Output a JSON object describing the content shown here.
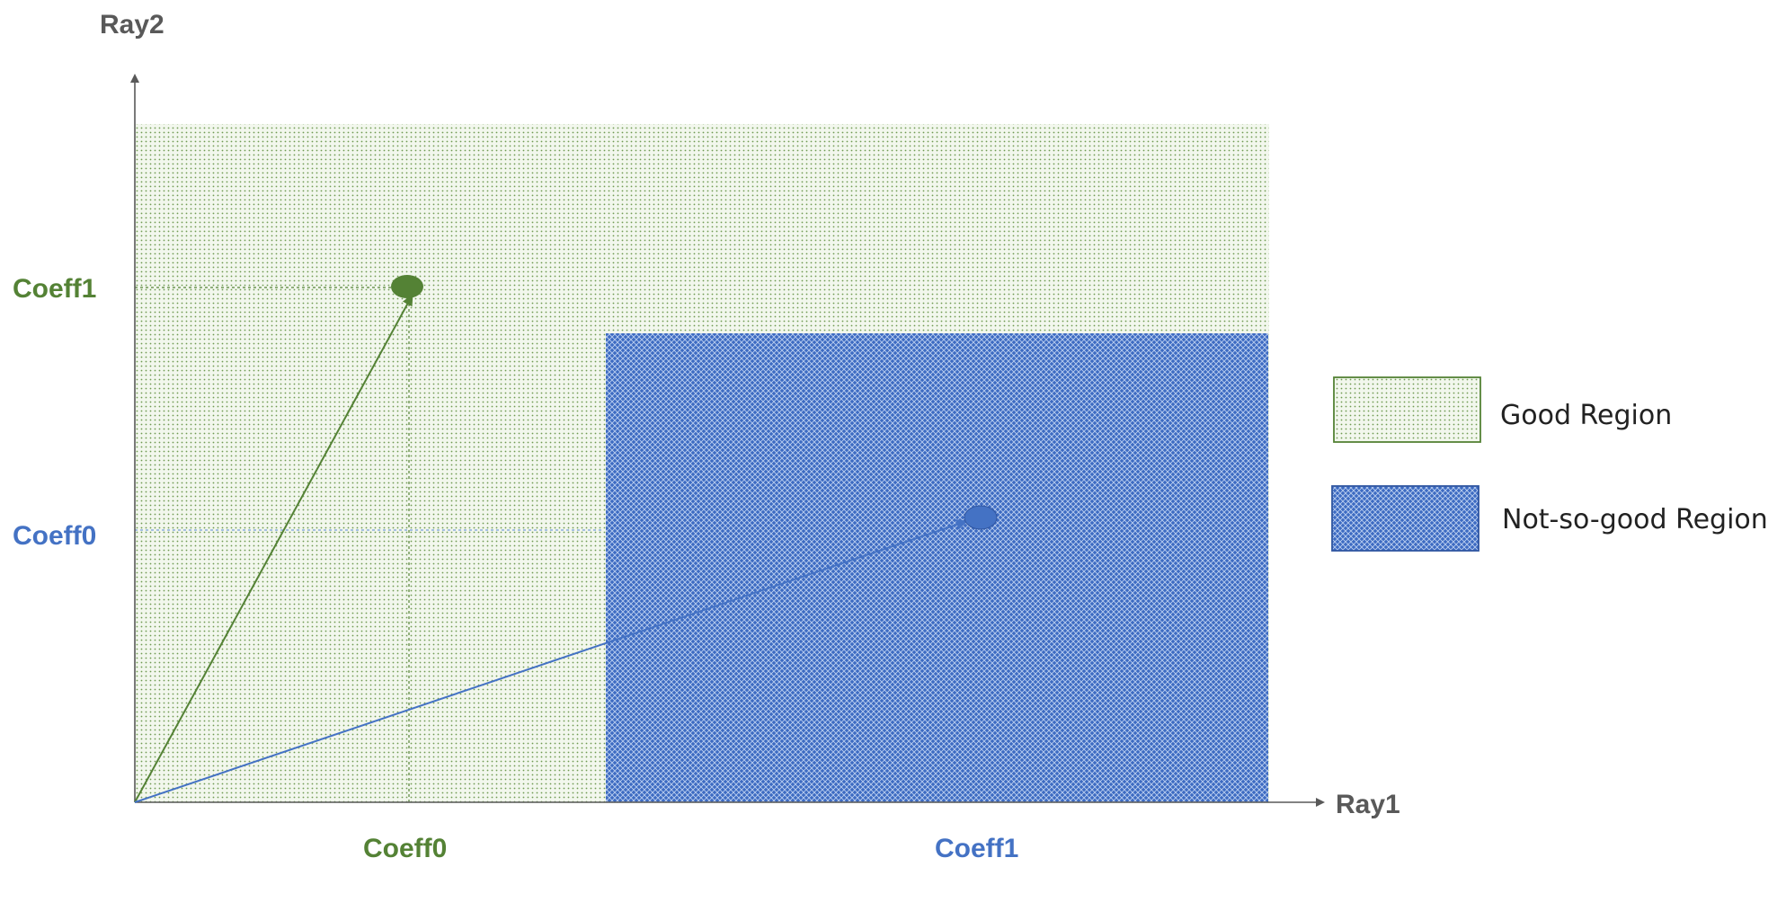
{
  "axes": {
    "x_label": "Ray1",
    "y_label": "Ray2"
  },
  "ticks": {
    "x": [
      {
        "label": "Coeff0",
        "color": "#548235"
      },
      {
        "label": "Coeff1",
        "color": "#4472C4"
      }
    ],
    "y": [
      {
        "label": "Coeff1",
        "color": "#548235"
      },
      {
        "label": "Coeff0",
        "color": "#4472C4"
      }
    ]
  },
  "legend": {
    "good": "Good Region",
    "not_good": "Not-so-good Region"
  },
  "colors": {
    "green": "#548235",
    "blue": "#4472C4",
    "green_fill": "#f1f6ec",
    "blue_fill": "#4a78c9",
    "axis": "#595959"
  },
  "vectors": [
    {
      "name": "green-vector",
      "color": "#548235"
    },
    {
      "name": "blue-vector",
      "color": "#4472C4"
    }
  ]
}
